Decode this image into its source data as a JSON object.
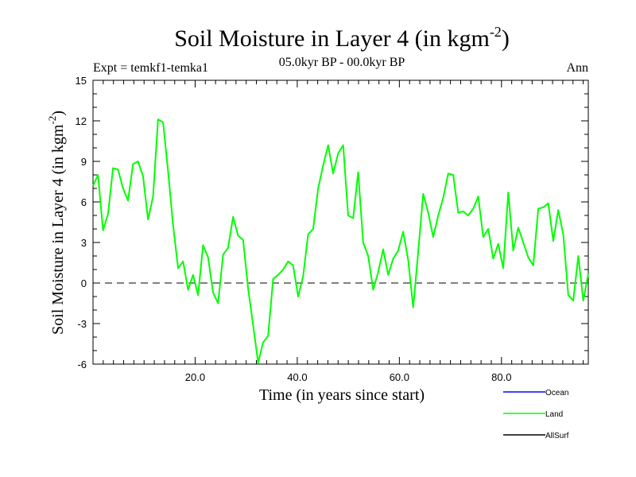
{
  "chart_data": {
    "type": "line",
    "title": "Soil Moisture in Layer 4 (in kgm",
    "title_sup": "-2",
    "title_close": ")",
    "expt_label": "Expt = temkf1-temka1",
    "period_label": "05.0kyr BP - 00.0kyr BP",
    "season_label": "Ann",
    "xlabel": "Time (in years since start)",
    "ylabel": "Soil Moisture in Layer 4 (in kgm",
    "ylabel_sup": "-2",
    "ylabel_close": ")",
    "xlim": [
      0,
      97
    ],
    "ylim": [
      -6,
      15
    ],
    "x_ticks": [
      20,
      40,
      60,
      80
    ],
    "x_tick_labels": [
      "20.0",
      "40.0",
      "60.0",
      "80.0"
    ],
    "y_ticks": [
      -6,
      -3,
      0,
      3,
      6,
      9,
      12,
      15
    ],
    "y_tick_labels": [
      "-6",
      "-3",
      "0",
      "3",
      "6",
      "9",
      "12",
      "15"
    ],
    "reference_line": 0,
    "series": [
      {
        "name": "Land",
        "color": "#00ff00",
        "values": [
          7.2,
          8.0,
          3.9,
          5.1,
          8.5,
          8.4,
          7.0,
          6.1,
          8.8,
          9.0,
          7.9,
          4.7,
          6.4,
          12.1,
          11.9,
          8.3,
          4.3,
          1.1,
          1.6,
          -0.5,
          0.6,
          -0.9,
          2.8,
          1.9,
          -0.7,
          -1.5,
          2.1,
          2.6,
          4.9,
          3.5,
          3.2,
          -0.4,
          -3.1,
          -5.9,
          -4.4,
          -3.9,
          0.3,
          0.6,
          1.0,
          1.6,
          1.3,
          -1.0,
          0.5,
          3.6,
          4.0,
          7.0,
          8.7,
          10.2,
          8.1,
          9.6,
          10.2,
          5.0,
          4.8,
          8.2,
          3.0,
          2.0,
          -0.5,
          0.8,
          2.5,
          0.6,
          1.8,
          2.4,
          3.8,
          1.7,
          -1.8,
          2.3,
          6.6,
          5.2,
          3.4,
          5.0,
          6.3,
          8.1,
          8.0,
          5.2,
          5.3,
          5.0,
          5.5,
          6.4,
          3.4,
          4.0,
          1.8,
          2.9,
          1.1,
          6.7,
          2.4,
          4.1,
          3.0,
          1.9,
          1.3,
          5.5,
          5.6,
          5.9,
          3.1,
          5.4,
          3.6,
          -0.9,
          -1.3,
          2.0,
          -1.3,
          0.7
        ]
      }
    ],
    "legend": [
      {
        "name": "Ocean",
        "color": "#0000ff"
      },
      {
        "name": "Land",
        "color": "#00ff00"
      },
      {
        "name": "AllSurf",
        "color": "#000000"
      }
    ]
  }
}
